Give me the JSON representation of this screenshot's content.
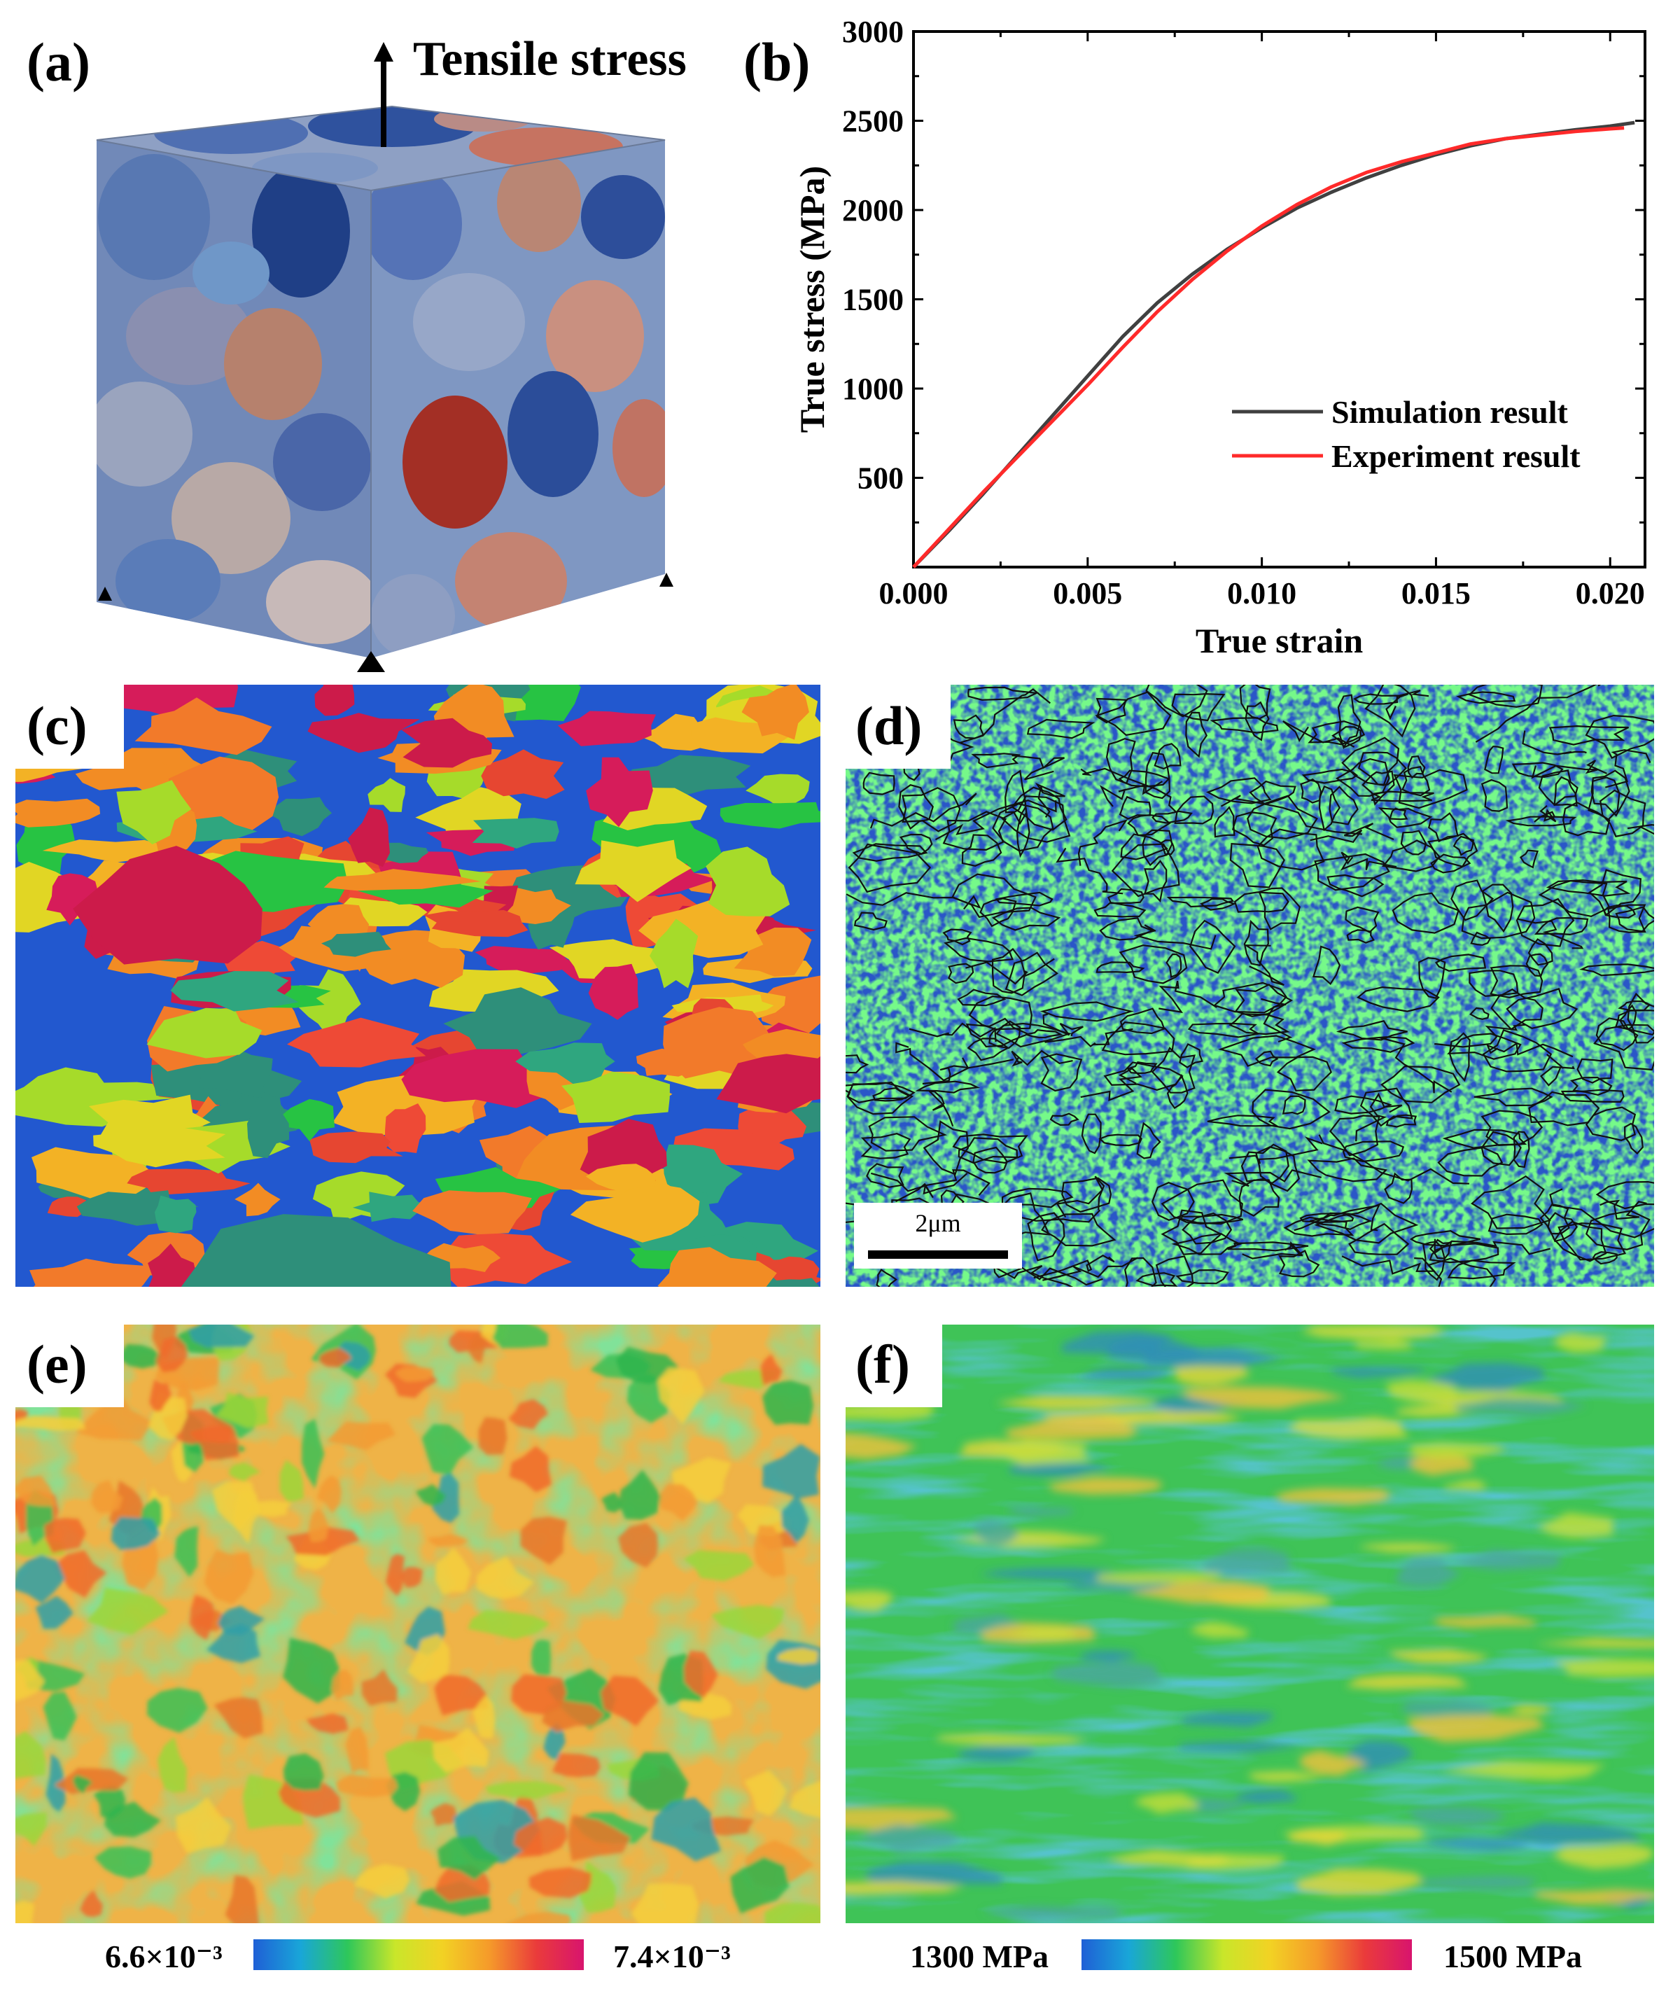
{
  "panels": {
    "a": {
      "label": "(a)",
      "arrow_text": "Tensile stress"
    },
    "b": {
      "label": "(b)"
    },
    "c": {
      "label": "(c)"
    },
    "d": {
      "label": "(d)",
      "scalebar": "2μm"
    },
    "e": {
      "label": "(e)",
      "colorbar": {
        "min": "6.6×10⁻³",
        "max": "7.4×10⁻³"
      }
    },
    "f": {
      "label": "(f)",
      "colorbar": {
        "min": "1300 MPa",
        "max": "1500 MPa"
      }
    }
  },
  "colors": {
    "simulation": "#404040",
    "experiment": "#ff2a2a",
    "cmap": [
      "#1f5fd6",
      "#19a6d8",
      "#2ec75a",
      "#c9e62a",
      "#f2d224",
      "#f59a2a",
      "#ea3b3b",
      "#d8146e"
    ]
  },
  "chart_data": {
    "type": "line",
    "xlabel": "True strain",
    "ylabel": "True stress (MPa)",
    "xlim": [
      0.0,
      0.021
    ],
    "ylim": [
      0,
      3000
    ],
    "xticks": [
      0.0,
      0.005,
      0.01,
      0.015,
      0.02
    ],
    "xtick_labels": [
      "0.000",
      "0.005",
      "0.010",
      "0.015",
      "0.020"
    ],
    "yticks": [
      500,
      1000,
      1500,
      2000,
      2500,
      3000
    ],
    "ytick_labels": [
      "500",
      "1000",
      "1500",
      "2000",
      "2500",
      "3000"
    ],
    "legend_position": "lower-right",
    "series": [
      {
        "name": "Simulation result",
        "x": [
          0.0,
          0.001,
          0.002,
          0.003,
          0.004,
          0.005,
          0.006,
          0.007,
          0.008,
          0.009,
          0.01,
          0.011,
          0.012,
          0.013,
          0.014,
          0.015,
          0.016,
          0.017,
          0.018,
          0.019,
          0.02,
          0.0207
        ],
        "y": [
          0,
          200,
          410,
          630,
          850,
          1070,
          1290,
          1480,
          1640,
          1780,
          1900,
          2010,
          2100,
          2180,
          2250,
          2310,
          2360,
          2400,
          2425,
          2450,
          2470,
          2490
        ]
      },
      {
        "name": "Experiment result",
        "x": [
          0.0,
          0.001,
          0.002,
          0.003,
          0.004,
          0.005,
          0.006,
          0.007,
          0.008,
          0.009,
          0.01,
          0.011,
          0.012,
          0.013,
          0.014,
          0.015,
          0.016,
          0.017,
          0.018,
          0.019,
          0.02,
          0.0204
        ],
        "y": [
          0,
          210,
          420,
          620,
          820,
          1020,
          1230,
          1430,
          1610,
          1770,
          1910,
          2030,
          2130,
          2210,
          2270,
          2320,
          2370,
          2400,
          2420,
          2440,
          2455,
          2460
        ]
      }
    ]
  }
}
